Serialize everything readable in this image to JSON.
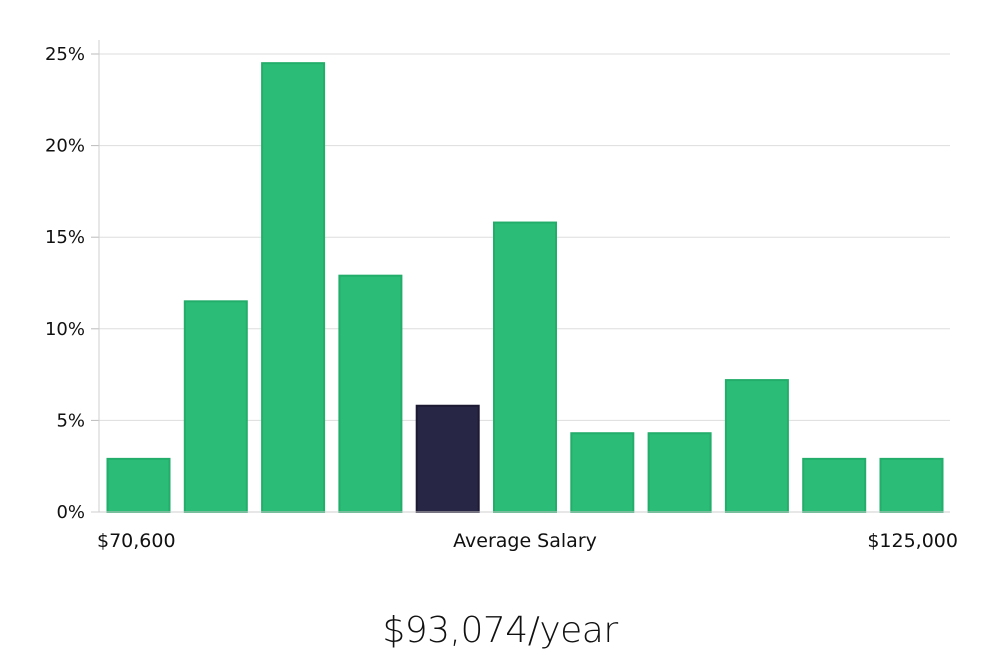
{
  "chart_data": {
    "type": "bar",
    "values": [
      2.9,
      11.5,
      24.5,
      12.9,
      5.8,
      15.8,
      4.3,
      4.3,
      7.2,
      2.9,
      2.9
    ],
    "highlight_index": 4,
    "ylim": [
      0,
      25
    ],
    "y_ticks": [
      "0%",
      "5%",
      "10%",
      "15%",
      "20%",
      "25%"
    ],
    "x_labels": {
      "min": "$70,600",
      "center": "Average Salary",
      "max": "$125,000"
    },
    "grid": true,
    "colors": {
      "bar": "#2bbd77",
      "bar_stroke": "#22ad6a",
      "highlight": "#282645",
      "grid": "#dddddd",
      "axis": "#cfcfcf"
    }
  },
  "salary_text": "$93,074/year"
}
